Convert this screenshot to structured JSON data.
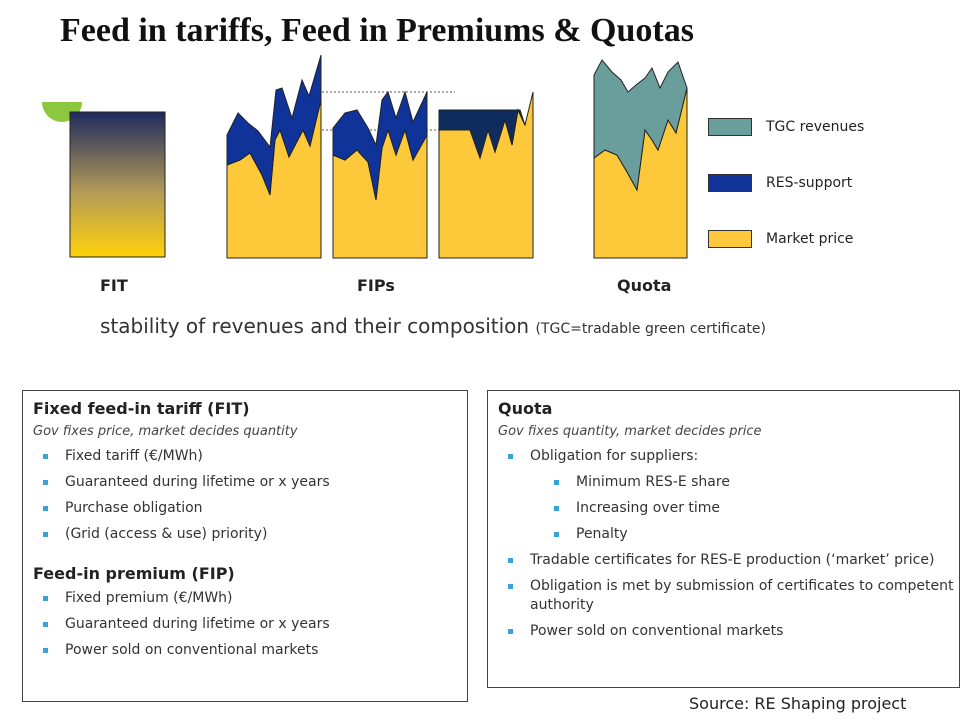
{
  "title": "Feed in tariffs, Feed in Premiums & Quotas",
  "colors": {
    "market_price": "#fdc93a",
    "res_support": "#0f3399",
    "tgc_revenues": "#6a9e9c",
    "dark_navy": "#0e2c5e",
    "bullet": "#3aa0d8"
  },
  "legend": [
    {
      "label": "TGC revenues",
      "color": "#6a9e9c"
    },
    {
      "label": "RES-support",
      "color": "#0f3399"
    },
    {
      "label": "Market price",
      "color": "#fdc93a"
    }
  ],
  "group_labels": {
    "fit": "FIT",
    "fips": "FIPs",
    "quota": "Quota"
  },
  "caption": {
    "main": "stability of revenues and their composition",
    "note": "(TGC=tradable green certificate)"
  },
  "fit_box": {
    "heading": "Fixed feed-in tariff (FIT)",
    "subtitle": "Gov fixes price, market decides quantity",
    "bullets": [
      "Fixed tariff (€/MWh)",
      "Guaranteed during lifetime or x years",
      "Purchase obligation",
      "(Grid (access & use) priority)"
    ],
    "fip_heading": "Feed-in premium (FIP)",
    "fip_bullets": [
      "Fixed premium (€/MWh)",
      "Guaranteed during lifetime or x years",
      "Power sold on conventional markets"
    ]
  },
  "quota_box": {
    "heading": "Quota",
    "subtitle": "Gov fixes quantity, market decides price",
    "bullets": [
      {
        "text": "Obligation for suppliers:",
        "level": 1
      },
      {
        "text": "Minimum RES-E share",
        "level": 2
      },
      {
        "text": "Increasing over time",
        "level": 2
      },
      {
        "text": "Penalty",
        "level": 2
      },
      {
        "text": "Tradable certificates for RES-E production (‘market’ price)",
        "level": 1
      },
      {
        "text": "Obligation is met by submission of  certificates to competent authority",
        "level": 1
      },
      {
        "text": "Power sold on conventional markets",
        "level": 1
      }
    ]
  },
  "source": "Source: RE Shaping project"
}
